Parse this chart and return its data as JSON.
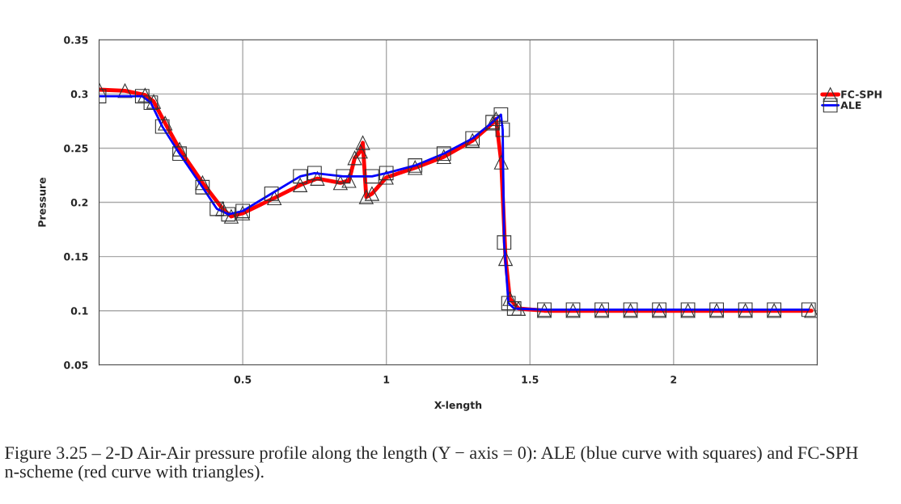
{
  "chart_data": {
    "type": "line",
    "xlabel": "X-length",
    "ylabel": "Pressure",
    "xlim": [
      0,
      2.5
    ],
    "xticks": [
      0.5,
      1,
      1.5,
      2
    ],
    "ylim": [
      0.05,
      0.35
    ],
    "yticks": [
      0.05,
      0.1,
      0.15,
      0.2,
      0.25,
      0.3,
      0.35
    ],
    "grid": true,
    "legend": "top right",
    "series": [
      {
        "name": "FC-SPH",
        "color": "#ff0000",
        "marker": "triangle",
        "x": [
          0.0,
          0.09,
          0.16,
          0.19,
          0.23,
          0.28,
          0.36,
          0.43,
          0.46,
          0.5,
          0.61,
          0.7,
          0.76,
          0.84,
          0.87,
          0.89,
          0.91,
          0.918,
          0.93,
          0.95,
          1.0,
          1.1,
          1.2,
          1.3,
          1.37,
          1.382,
          1.4,
          1.415,
          1.43,
          1.46,
          1.55,
          1.65,
          1.75,
          1.85,
          1.95,
          2.05,
          2.15,
          2.25,
          2.35,
          2.48
        ],
        "values": [
          0.304,
          0.303,
          0.299,
          0.293,
          0.273,
          0.249,
          0.218,
          0.194,
          0.187,
          0.19,
          0.204,
          0.216,
          0.222,
          0.218,
          0.22,
          0.241,
          0.247,
          0.255,
          0.205,
          0.208,
          0.223,
          0.232,
          0.242,
          0.257,
          0.273,
          0.277,
          0.237,
          0.148,
          0.111,
          0.102,
          0.1,
          0.1,
          0.1,
          0.1,
          0.1,
          0.1,
          0.1,
          0.1,
          0.1,
          0.1
        ]
      },
      {
        "name": "ALE",
        "color": "#0000ff",
        "marker": "square",
        "x": [
          0.0,
          0.15,
          0.18,
          0.22,
          0.28,
          0.36,
          0.41,
          0.45,
          0.5,
          0.6,
          0.7,
          0.75,
          0.85,
          0.95,
          1.0,
          1.1,
          1.2,
          1.3,
          1.37,
          1.399,
          1.405,
          1.41,
          1.425,
          1.445,
          1.55,
          1.65,
          1.75,
          1.85,
          1.95,
          2.05,
          2.15,
          2.25,
          2.35,
          2.47
        ],
        "values": [
          0.298,
          0.298,
          0.292,
          0.27,
          0.245,
          0.214,
          0.194,
          0.189,
          0.192,
          0.208,
          0.224,
          0.227,
          0.224,
          0.224,
          0.227,
          0.234,
          0.245,
          0.259,
          0.274,
          0.281,
          0.267,
          0.163,
          0.107,
          0.102,
          0.101,
          0.101,
          0.101,
          0.101,
          0.101,
          0.101,
          0.101,
          0.101,
          0.101,
          0.101
        ]
      }
    ],
    "annotations": [
      "Figure 3.25 – 2-D Air-Air pressure profile along the length (Y − axis = 0): ALE (blue curve with squares) and FC-SPH n-scheme (red curve with triangles)."
    ]
  }
}
